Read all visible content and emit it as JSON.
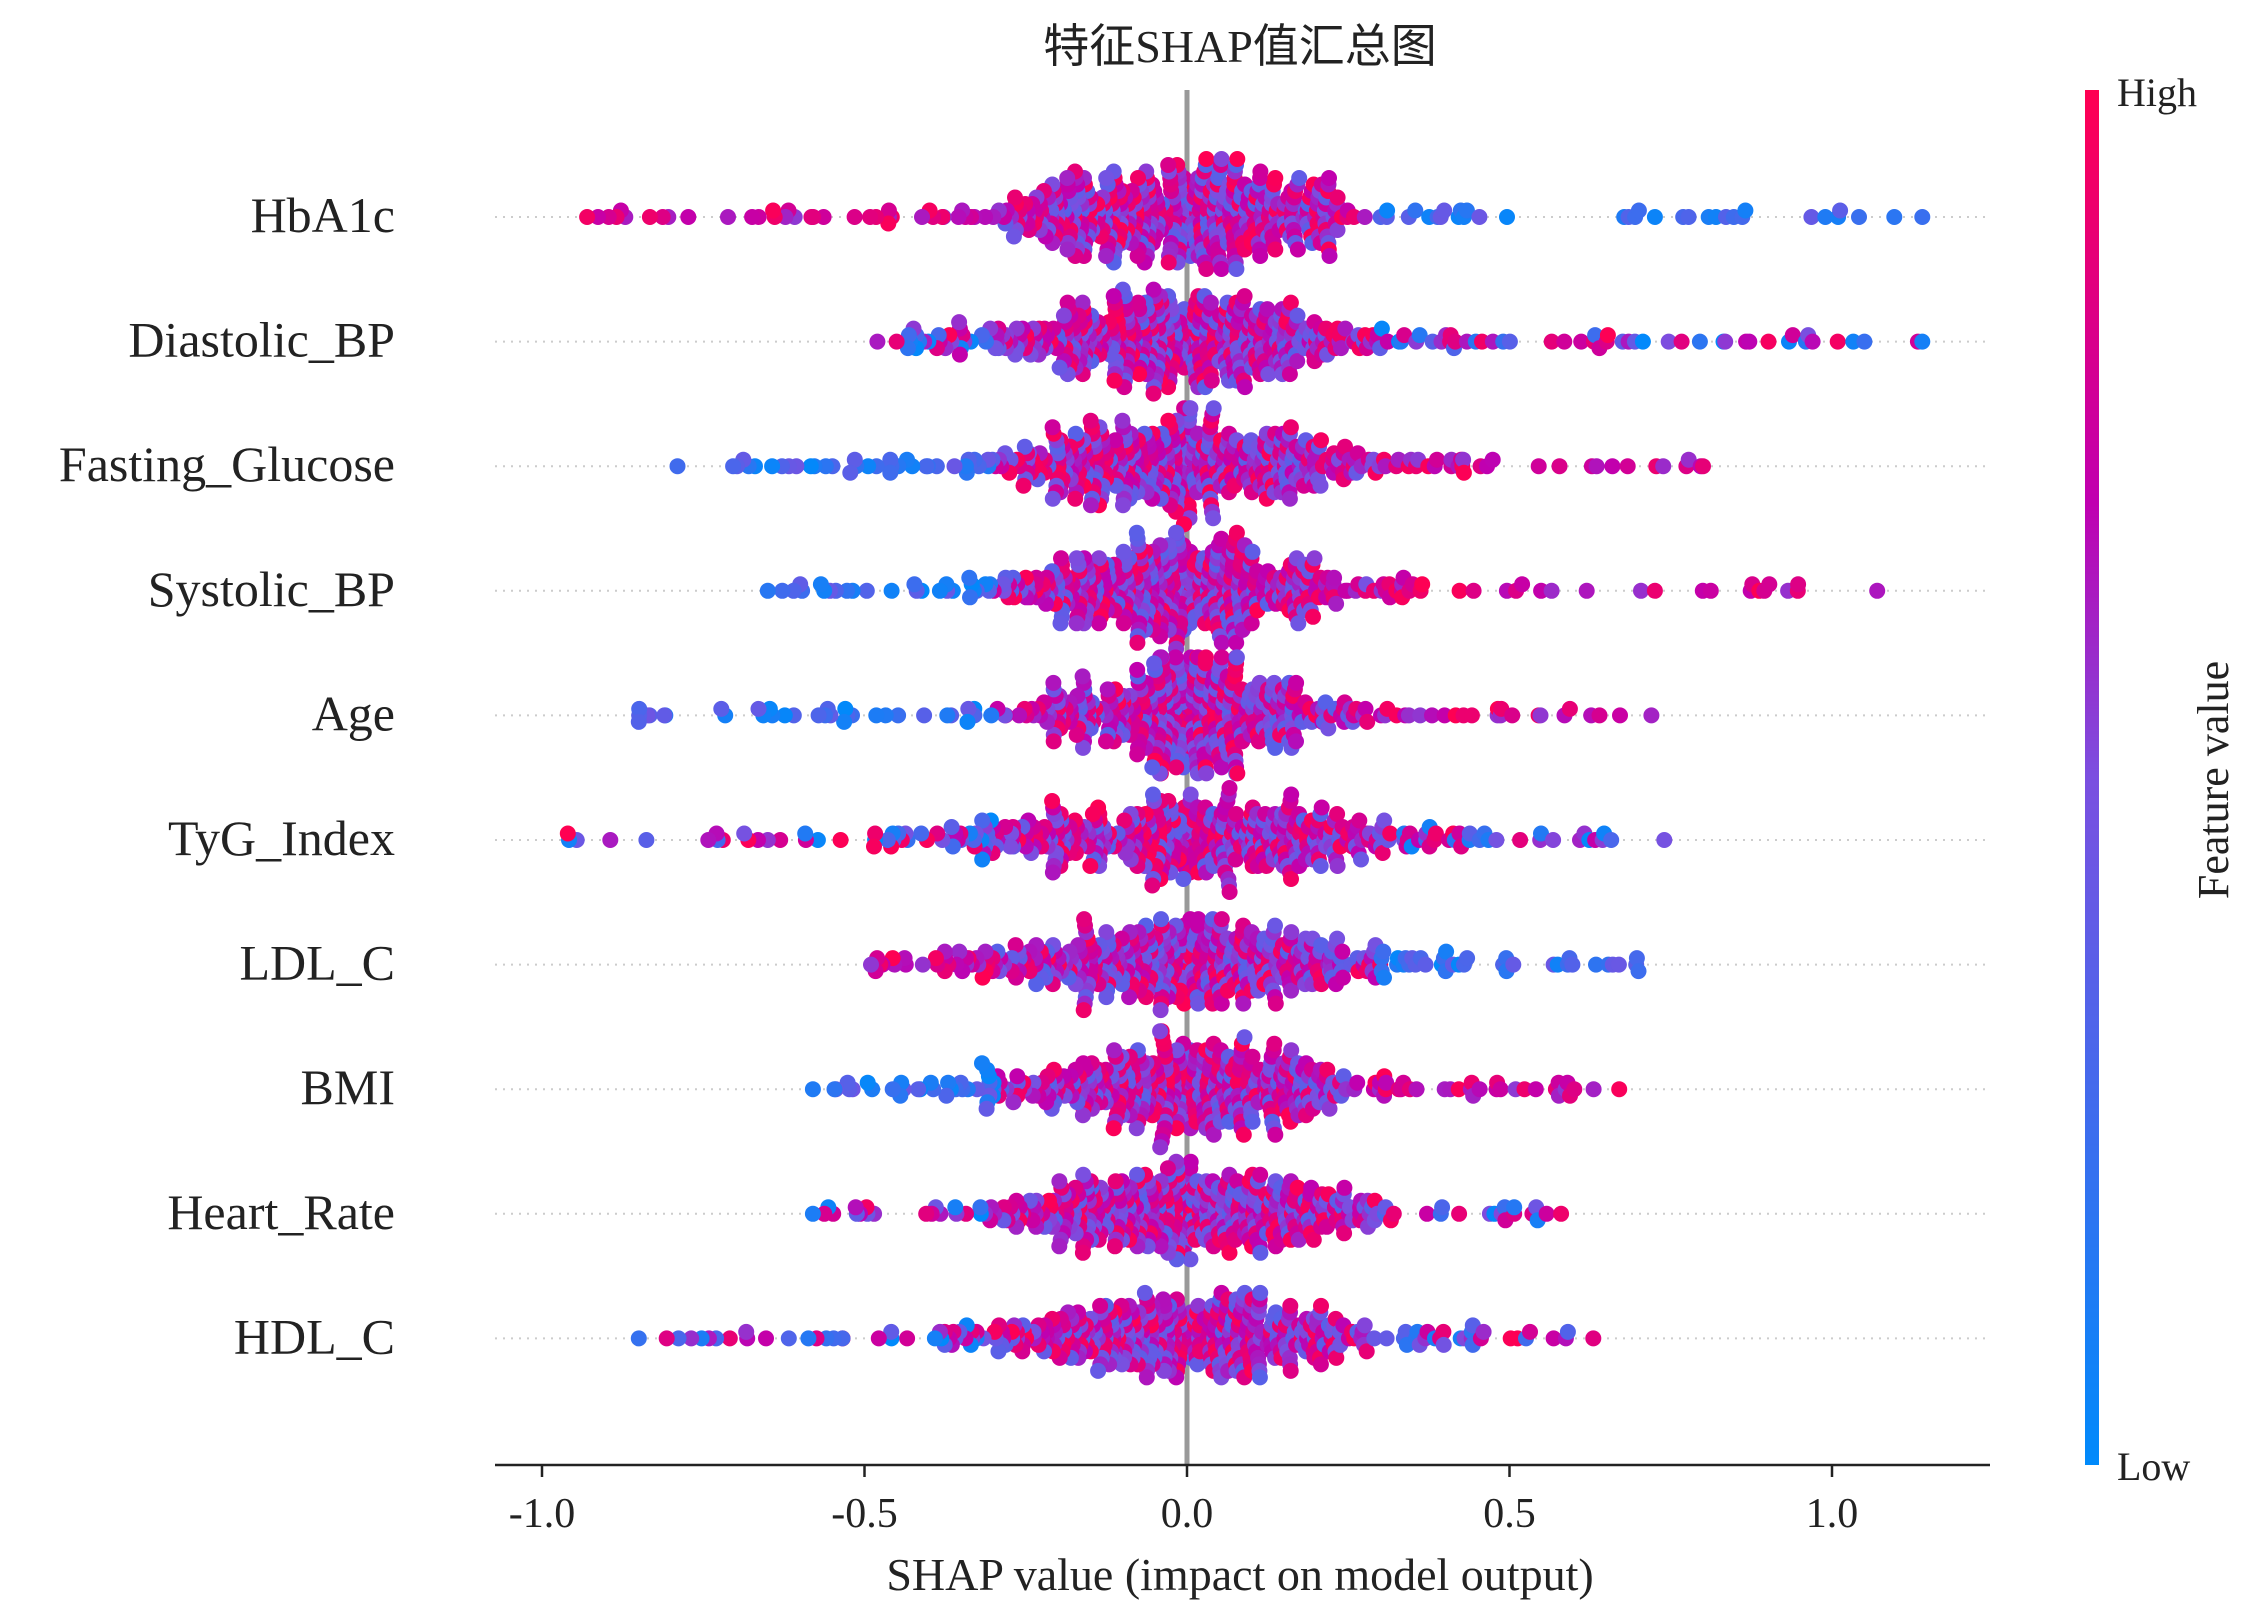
{
  "chart_data": {
    "type": "scatter",
    "title": "特征SHAP值汇总图",
    "xlabel": "SHAP value (impact on model output)",
    "xlim": [
      -1.05,
      1.25
    ],
    "xticks": [
      -1.0,
      -0.5,
      0.0,
      0.5,
      1.0
    ],
    "xtick_labels": [
      "-1.0",
      "-0.5",
      "0.0",
      "0.5",
      "1.0"
    ],
    "colorbar": {
      "label": "Feature value",
      "high_label": "High",
      "low_label": "Low",
      "low_color": "#008afb",
      "high_color": "#ff0052"
    },
    "grid": "dotted row guides",
    "legend_placement": "right",
    "features": [
      {
        "name": "HbA1c",
        "min": -0.93,
        "max": 1.14,
        "core_width": 0.17,
        "spread": 0.42,
        "points": 520,
        "skew": "high-negative"
      },
      {
        "name": "Diastolic_BP",
        "min": -0.48,
        "max": 1.14,
        "core_width": 0.16,
        "spread": 0.33,
        "points": 500,
        "skew": "mixed"
      },
      {
        "name": "Fasting_Glucose",
        "min": -0.79,
        "max": 0.8,
        "core_width": 0.17,
        "spread": 0.3,
        "points": 480,
        "skew": "high-positive"
      },
      {
        "name": "Systolic_BP",
        "min": -0.65,
        "max": 1.07,
        "core_width": 0.14,
        "spread": 0.3,
        "points": 480,
        "skew": "high-positive"
      },
      {
        "name": "Age",
        "min": -0.85,
        "max": 0.72,
        "core_width": 0.12,
        "spread": 0.3,
        "points": 470,
        "skew": "high-positive"
      },
      {
        "name": "TyG_Index",
        "min": -0.96,
        "max": 0.74,
        "core_width": 0.2,
        "spread": 0.28,
        "points": 470,
        "skew": "mixed"
      },
      {
        "name": "LDL_C",
        "min": -0.49,
        "max": 0.7,
        "core_width": 0.16,
        "spread": 0.24,
        "points": 460,
        "skew": "high-negative"
      },
      {
        "name": "BMI",
        "min": -0.58,
        "max": 0.67,
        "core_width": 0.14,
        "spread": 0.22,
        "points": 450,
        "skew": "high-positive"
      },
      {
        "name": "Heart_Rate",
        "min": -0.58,
        "max": 0.58,
        "core_width": 0.15,
        "spread": 0.22,
        "points": 450,
        "skew": "mixed"
      },
      {
        "name": "HDL_C",
        "min": -0.85,
        "max": 0.63,
        "core_width": 0.16,
        "spread": 0.22,
        "points": 450,
        "skew": "mixed"
      }
    ]
  }
}
